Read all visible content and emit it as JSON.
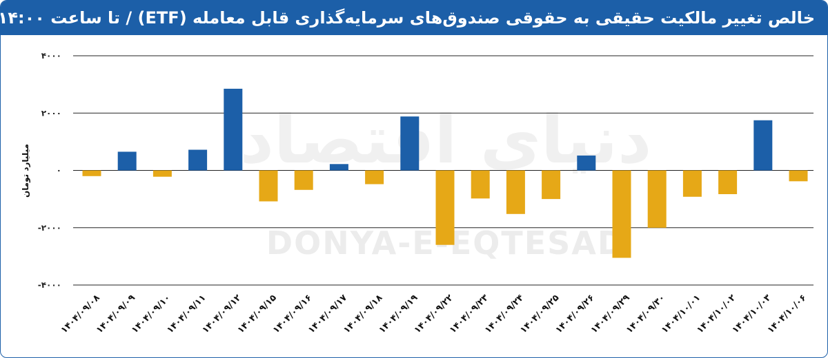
{
  "header": {
    "title": "خالص تغییر مالکیت حقیقی به حقوقی صندوق‌های سرمایه‌گذاری قابل معامله (ETF) / تا ساعت ۱۴:۰۰"
  },
  "watermark": {
    "latin": "DONYA-E-EQTESAD",
    "persian": "دنیای اقتصاد"
  },
  "colors": {
    "header": "#1c5fa8",
    "positive": "#1c5fa8",
    "negative": "#e6a817",
    "grid": "#222222"
  },
  "chart_data": {
    "type": "bar",
    "title": "خالص تغییر مالکیت حقیقی به حقوقی صندوق‌های سرمایه‌گذاری قابل معامله (ETF) / تا ساعت ۱۴:۰۰",
    "ylabel": "میلیارد تومان",
    "xlabel": "",
    "ylim": [
      -4000,
      4000
    ],
    "yticks": [
      4000,
      2000,
      0,
      -2000,
      -4000
    ],
    "ytick_labels": [
      "۴۰۰۰",
      "۲۰۰۰",
      "۰",
      "-۲۰۰۰",
      "-۴۰۰۰"
    ],
    "grid": true,
    "categories": [
      "۱۴۰۴/۰۹/۰۸",
      "۱۴۰۴/۰۹/۰۹",
      "۱۴۰۴/۰۹/۱۰",
      "۱۴۰۴/۰۹/۱۱",
      "۱۴۰۴/۰۹/۱۲",
      "۱۴۰۴/۰۹/۱۵",
      "۱۴۰۴/۰۹/۱۶",
      "۱۴۰۴/۰۹/۱۷",
      "۱۴۰۴/۰۹/۱۸",
      "۱۴۰۴/۰۹/۱۹",
      "۱۴۰۴/۰۹/۲۲",
      "۱۴۰۴/۰۹/۲۳",
      "۱۴۰۴/۰۹/۲۴",
      "۱۴۰۴/۰۹/۲۵",
      "۱۴۰۴/۰۹/۲۶",
      "۱۴۰۴/۰۹/۲۹",
      "۱۴۰۴/۰۹/۳۰",
      "۱۴۰۴/۱۰/۰۱",
      "۱۴۰۴/۱۰/۰۲",
      "۱۴۰۴/۱۰/۰۳",
      "۱۴۰۴/۱۰/۰۶"
    ],
    "values": [
      -200,
      650,
      -220,
      720,
      2850,
      -1080,
      -680,
      220,
      -480,
      1880,
      -2600,
      -980,
      -1520,
      -1000,
      520,
      -3050,
      -2000,
      -920,
      -830,
      1750,
      -380
    ]
  }
}
